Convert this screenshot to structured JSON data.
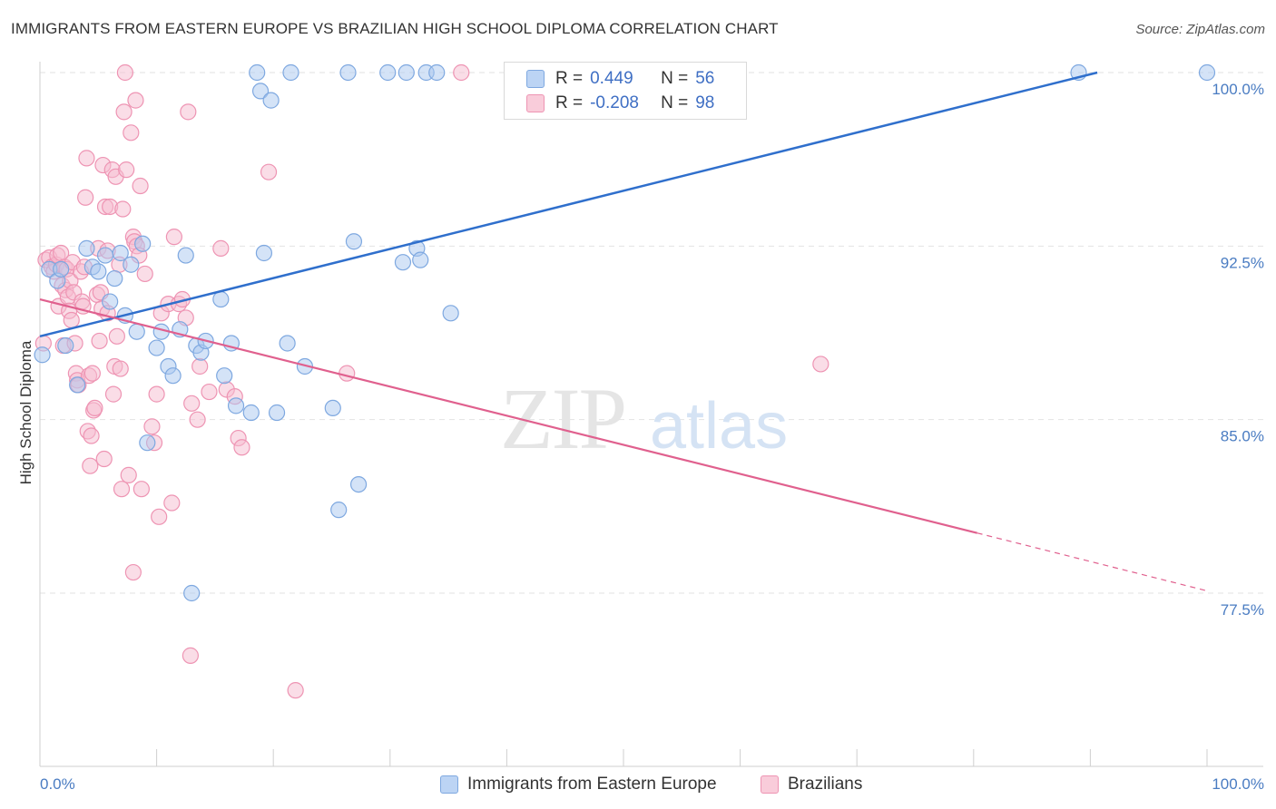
{
  "title": "IMMIGRANTS FROM EASTERN EUROPE VS BRAZILIAN HIGH SCHOOL DIPLOMA CORRELATION CHART",
  "source": "Source: ZipAtlas.com",
  "watermark": {
    "zip": "ZIP",
    "atlas": "atlas"
  },
  "legend": {
    "rows": [
      {
        "r_label": "R =",
        "r_value": "0.449",
        "n_label": "N =",
        "n_value": "56"
      },
      {
        "r_label": "R =",
        "r_value": "-0.208",
        "n_label": "N =",
        "n_value": "98"
      }
    ]
  },
  "colors": {
    "blue_fill": "#a9c8f0",
    "blue_stroke": "#7ea8e0",
    "blue_line": "#2f6fcc",
    "pink_fill": "#f6bccf",
    "pink_stroke": "#ee94b3",
    "pink_line": "#e0608e"
  },
  "chart_data": {
    "type": "scatter",
    "title": "IMMIGRANTS FROM EASTERN EUROPE VS BRAZILIAN HIGH SCHOOL DIPLOMA CORRELATION CHART",
    "xlabel": "",
    "ylabel": "High School Diploma",
    "xlim": [
      0,
      100
    ],
    "ylim": [
      72.5,
      101.5
    ],
    "x_tick_labels": [
      "0.0%",
      "100.0%"
    ],
    "y_ticks": [
      77.5,
      85.0,
      92.5,
      100.0
    ],
    "y_tick_labels": [
      "77.5%",
      "85.0%",
      "92.5%",
      "100.0%"
    ],
    "grid": true,
    "legend_position": "top-center",
    "series": [
      {
        "name": "Immigrants from Eastern Europe",
        "color": "#a9c8f0",
        "trend": {
          "x0": 0,
          "y0": 88.6,
          "x1": 90.6,
          "y1": 100.0
        },
        "points": [
          [
            0.2,
            87.8
          ],
          [
            0.8,
            91.5
          ],
          [
            1.5,
            91.0
          ],
          [
            1.8,
            91.5
          ],
          [
            2.2,
            88.2
          ],
          [
            3.2,
            86.5
          ],
          [
            4.0,
            92.4
          ],
          [
            4.5,
            91.6
          ],
          [
            5.0,
            91.4
          ],
          [
            5.6,
            92.1
          ],
          [
            6.0,
            90.1
          ],
          [
            6.4,
            91.1
          ],
          [
            6.9,
            92.2
          ],
          [
            7.3,
            89.5
          ],
          [
            7.8,
            91.7
          ],
          [
            8.3,
            88.8
          ],
          [
            8.8,
            92.6
          ],
          [
            9.2,
            84.0
          ],
          [
            10.0,
            88.1
          ],
          [
            10.4,
            88.8
          ],
          [
            11.0,
            87.3
          ],
          [
            11.4,
            86.9
          ],
          [
            12.0,
            88.9
          ],
          [
            12.5,
            92.1
          ],
          [
            13.0,
            77.5
          ],
          [
            13.4,
            88.2
          ],
          [
            13.8,
            87.9
          ],
          [
            14.2,
            88.4
          ],
          [
            15.5,
            90.2
          ],
          [
            15.8,
            86.9
          ],
          [
            16.4,
            88.3
          ],
          [
            16.8,
            85.6
          ],
          [
            18.1,
            85.3
          ],
          [
            18.6,
            100.0
          ],
          [
            18.9,
            99.2
          ],
          [
            19.2,
            92.2
          ],
          [
            19.8,
            98.8
          ],
          [
            20.3,
            85.3
          ],
          [
            21.2,
            88.3
          ],
          [
            21.5,
            100.0
          ],
          [
            22.7,
            87.3
          ],
          [
            25.1,
            85.5
          ],
          [
            25.6,
            81.1
          ],
          [
            26.4,
            100.0
          ],
          [
            26.9,
            92.7
          ],
          [
            27.3,
            82.2
          ],
          [
            29.8,
            100.0
          ],
          [
            31.1,
            91.8
          ],
          [
            31.4,
            100.0
          ],
          [
            32.3,
            92.4
          ],
          [
            32.6,
            91.9
          ],
          [
            33.1,
            100.0
          ],
          [
            34.0,
            100.0
          ],
          [
            35.2,
            89.6
          ],
          [
            89.0,
            100.0
          ],
          [
            100.0,
            100.0
          ]
        ]
      },
      {
        "name": "Brazilians",
        "color": "#f6bccf",
        "trend": {
          "x0": 0,
          "y0": 90.2,
          "x1": 80.3,
          "y1": 80.1,
          "dash_to": {
            "x": 100,
            "y": 77.6
          }
        },
        "points": [
          [
            0.3,
            88.3
          ],
          [
            0.5,
            91.9
          ],
          [
            0.8,
            92.0
          ],
          [
            1.0,
            91.6
          ],
          [
            1.2,
            91.4
          ],
          [
            1.4,
            91.7
          ],
          [
            1.5,
            92.1
          ],
          [
            1.6,
            89.9
          ],
          [
            1.8,
            92.2
          ],
          [
            1.9,
            90.8
          ],
          [
            2.0,
            88.2
          ],
          [
            2.1,
            91.6
          ],
          [
            2.2,
            90.6
          ],
          [
            2.3,
            91.5
          ],
          [
            2.4,
            90.3
          ],
          [
            2.5,
            89.7
          ],
          [
            2.6,
            91.0
          ],
          [
            2.7,
            89.3
          ],
          [
            2.8,
            91.8
          ],
          [
            2.9,
            90.5
          ],
          [
            3.0,
            88.3
          ],
          [
            3.1,
            87.0
          ],
          [
            3.2,
            86.7
          ],
          [
            3.3,
            86.5
          ],
          [
            3.5,
            91.4
          ],
          [
            3.6,
            90.1
          ],
          [
            3.7,
            89.9
          ],
          [
            3.8,
            91.6
          ],
          [
            3.9,
            94.6
          ],
          [
            4.0,
            96.3
          ],
          [
            4.1,
            84.5
          ],
          [
            4.2,
            86.9
          ],
          [
            4.3,
            83.0
          ],
          [
            4.4,
            84.3
          ],
          [
            4.5,
            87.0
          ],
          [
            4.6,
            85.4
          ],
          [
            4.7,
            85.5
          ],
          [
            4.9,
            90.4
          ],
          [
            5.0,
            92.4
          ],
          [
            5.1,
            88.4
          ],
          [
            5.2,
            90.5
          ],
          [
            5.3,
            89.8
          ],
          [
            5.4,
            96.0
          ],
          [
            5.5,
            83.3
          ],
          [
            5.6,
            94.2
          ],
          [
            5.8,
            92.3
          ],
          [
            6.0,
            94.2
          ],
          [
            6.2,
            95.8
          ],
          [
            6.3,
            86.1
          ],
          [
            6.4,
            87.3
          ],
          [
            6.5,
            95.5
          ],
          [
            6.6,
            88.6
          ],
          [
            6.8,
            91.7
          ],
          [
            6.9,
            87.2
          ],
          [
            7.0,
            82.0
          ],
          [
            7.1,
            94.1
          ],
          [
            7.2,
            98.3
          ],
          [
            7.3,
            100.0
          ],
          [
            7.4,
            95.8
          ],
          [
            7.6,
            82.6
          ],
          [
            7.8,
            97.4
          ],
          [
            8.0,
            92.9
          ],
          [
            8.1,
            92.7
          ],
          [
            8.2,
            98.8
          ],
          [
            8.3,
            92.5
          ],
          [
            8.5,
            92.1
          ],
          [
            8.6,
            95.1
          ],
          [
            8.7,
            82.0
          ],
          [
            9.0,
            91.3
          ],
          [
            9.6,
            84.7
          ],
          [
            9.8,
            84.0
          ],
          [
            10.0,
            86.1
          ],
          [
            10.2,
            80.8
          ],
          [
            10.4,
            89.6
          ],
          [
            11.0,
            90.0
          ],
          [
            11.3,
            81.4
          ],
          [
            11.5,
            92.9
          ],
          [
            11.9,
            90.0
          ],
          [
            12.2,
            90.2
          ],
          [
            12.5,
            89.4
          ],
          [
            12.7,
            98.3
          ],
          [
            12.9,
            74.8
          ],
          [
            13.0,
            85.7
          ],
          [
            13.5,
            85.0
          ],
          [
            13.7,
            87.3
          ],
          [
            14.5,
            86.2
          ],
          [
            15.5,
            92.4
          ],
          [
            16.0,
            86.3
          ],
          [
            16.7,
            86.0
          ],
          [
            17.0,
            84.2
          ],
          [
            17.3,
            83.8
          ],
          [
            19.6,
            95.7
          ],
          [
            21.9,
            73.3
          ],
          [
            26.3,
            87.0
          ],
          [
            36.1,
            100.0
          ],
          [
            66.9,
            87.4
          ],
          [
            8.0,
            78.4
          ],
          [
            5.8,
            89.6
          ]
        ]
      }
    ]
  }
}
